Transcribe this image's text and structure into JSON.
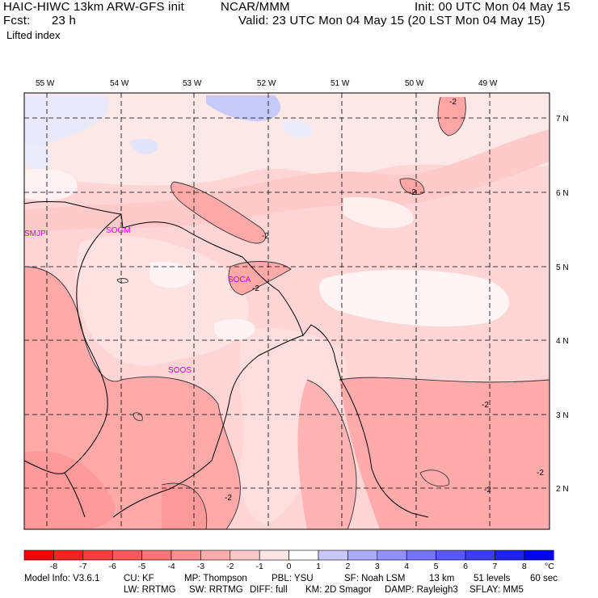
{
  "header": {
    "model_title": "HAIC-HIWC 13km ARW-GFS init",
    "org": "NCAR/MMM",
    "init": "Init: 00 UTC Mon 04 May 15",
    "fcst_label": "Fcst:",
    "fcst_value": "23 h",
    "valid": "Valid: 23 UTC Mon 04 May 15 (20 LST Mon 04 May 15)",
    "field": "Lifted index"
  },
  "map": {
    "lon_labels": [
      "55 W",
      "54 W",
      "53 W",
      "52 W",
      "51 W",
      "50 W",
      "49 W"
    ],
    "lat_labels": [
      "7 N",
      "6 N",
      "5 N",
      "4 N",
      "3 N",
      "2 N"
    ],
    "stations": [
      "SMJP",
      "SOGM",
      "SOCA",
      "SOOS"
    ],
    "contour_labels": [
      "-2",
      "-2",
      "-2",
      "-2",
      "-2",
      "-2",
      "-2",
      "-2"
    ]
  },
  "colorbar": {
    "levels": [
      "-8",
      "-7",
      "-6",
      "-5",
      "-4",
      "-3",
      "-2",
      "-1",
      "0",
      "1",
      "2",
      "3",
      "4",
      "5",
      "6",
      "7",
      "8"
    ],
    "unit": "°C",
    "colors": [
      "#ff0000",
      "#ff2020",
      "#ff3c3c",
      "#ff5858",
      "#ff7474",
      "#ff9090",
      "#ffacac",
      "#ffc8c8",
      "#ffe4e4",
      "#ffffff",
      "#c8c8ff",
      "#acacff",
      "#9090ff",
      "#7474ff",
      "#5858ff",
      "#3c3cff",
      "#2020ff",
      "#0000ff"
    ]
  },
  "footer": {
    "line1": [
      "Model Info: V3.6.1",
      "CU: KF",
      "MP: Thompson",
      "PBL: YSU",
      "SF: Noah LSM",
      "13 km",
      "51 levels",
      "60 sec"
    ],
    "line2": [
      "LW: RRTMG",
      "SW: RRTMG",
      "DIFF: full",
      "KM: 2D Smagor",
      "DAMP: Rayleigh3",
      "SFLAY: MM5"
    ]
  }
}
